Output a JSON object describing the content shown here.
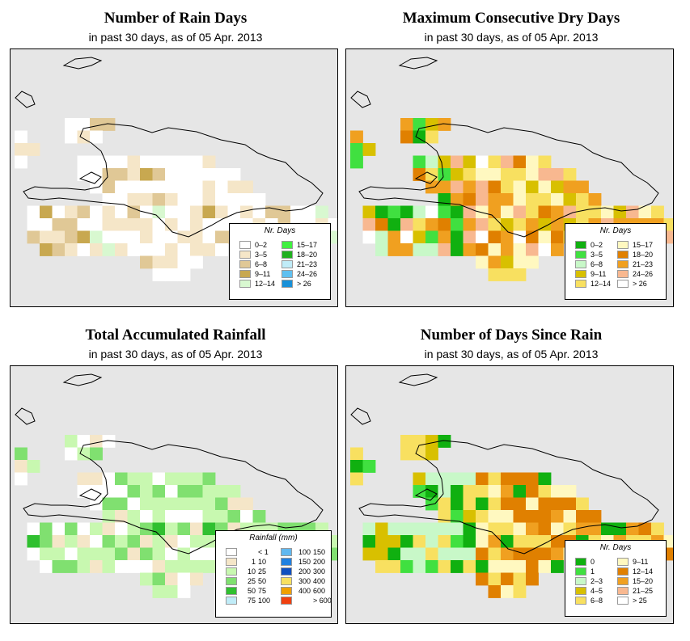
{
  "panels": [
    {
      "id": "rain-days",
      "title": "Number of Rain Days",
      "subtitle": "in past 30 days, as of  05 Apr. 2013",
      "legend": {
        "title": "Nr. Days",
        "items": [
          {
            "label": "0–2",
            "color": "#ffffff"
          },
          {
            "label": "3–5",
            "color": "#f5e6c8"
          },
          {
            "label": "6–8",
            "color": "#e0c896"
          },
          {
            "label": "9–11",
            "color": "#c8a850"
          },
          {
            "label": "12–14",
            "color": "#d8f8d0"
          },
          {
            "label": "15–17",
            "color": "#40f040"
          },
          {
            "label": "18–20",
            "color": "#20b020"
          },
          {
            "label": "21–23",
            "color": "#c0ecf8"
          },
          {
            "label": "24–26",
            "color": "#60c0f0"
          },
          {
            "label": "> 26",
            "color": "#1890d8"
          }
        ]
      }
    },
    {
      "id": "dry-days",
      "title": "Maximum Consecutive Dry Days",
      "subtitle": "in past 30 days, as of  05 Apr. 2013",
      "legend": {
        "title": "Nr. Days",
        "items": [
          {
            "label": "0–2",
            "color": "#10b010"
          },
          {
            "label": "3–5",
            "color": "#40e040"
          },
          {
            "label": "6–8",
            "color": "#c8f8c8"
          },
          {
            "label": "9–11",
            "color": "#d8c000"
          },
          {
            "label": "12–14",
            "color": "#f8e060"
          },
          {
            "label": "15–17",
            "color": "#fff8c0"
          },
          {
            "label": "18–20",
            "color": "#e08000"
          },
          {
            "label": "21–23",
            "color": "#f0a020"
          },
          {
            "label": "24–26",
            "color": "#f8b890"
          },
          {
            "label": "> 26",
            "color": "#ffffff"
          }
        ]
      }
    },
    {
      "id": "rainfall",
      "title": "Total Accumulated Rainfall",
      "subtitle": "in past 30 days, as of  05 Apr. 2013",
      "legend": {
        "title": "Rainfall (mm)",
        "items": [
          {
            "lo": "",
            "hi": "< 1",
            "color": "#ffffff"
          },
          {
            "lo": "1",
            "hi": "10",
            "color": "#f5e6c8"
          },
          {
            "lo": "10",
            "hi": "25",
            "color": "#c8f8b0"
          },
          {
            "lo": "25",
            "hi": "50",
            "color": "#80e070"
          },
          {
            "lo": "50",
            "hi": "75",
            "color": "#30c030"
          },
          {
            "lo": "75",
            "hi": "100",
            "color": "#c0ecf8"
          },
          {
            "lo": "100",
            "hi": "150",
            "color": "#60b8f0"
          },
          {
            "lo": "150",
            "hi": "200",
            "color": "#2080e0"
          },
          {
            "lo": "200",
            "hi": "300",
            "color": "#1050c0"
          },
          {
            "lo": "300",
            "hi": "400",
            "color": "#f8e060"
          },
          {
            "lo": "400",
            "hi": "600",
            "color": "#f0a000"
          },
          {
            "lo": "",
            "hi": "> 600",
            "color": "#f04010"
          }
        ]
      }
    },
    {
      "id": "days-since-rain",
      "title": "Number of Days Since Rain",
      "subtitle": "in past 30 days, as of  05 Apr. 2013",
      "legend": {
        "title": "Nr. Days",
        "items": [
          {
            "label": "0",
            "color": "#10b010"
          },
          {
            "label": "1",
            "color": "#40e040"
          },
          {
            "label": "2–3",
            "color": "#c8f8c8"
          },
          {
            "label": "4–5",
            "color": "#d8c000"
          },
          {
            "label": "6–8",
            "color": "#f8e060"
          },
          {
            "label": "9–11",
            "color": "#fff8c0"
          },
          {
            "label": "12–14",
            "color": "#e08000"
          },
          {
            "label": "15–20",
            "color": "#f0a020"
          },
          {
            "label": "21–25",
            "color": "#f8b890"
          },
          {
            "label": "> 25",
            "color": "#ffffff"
          }
        ]
      }
    }
  ]
}
